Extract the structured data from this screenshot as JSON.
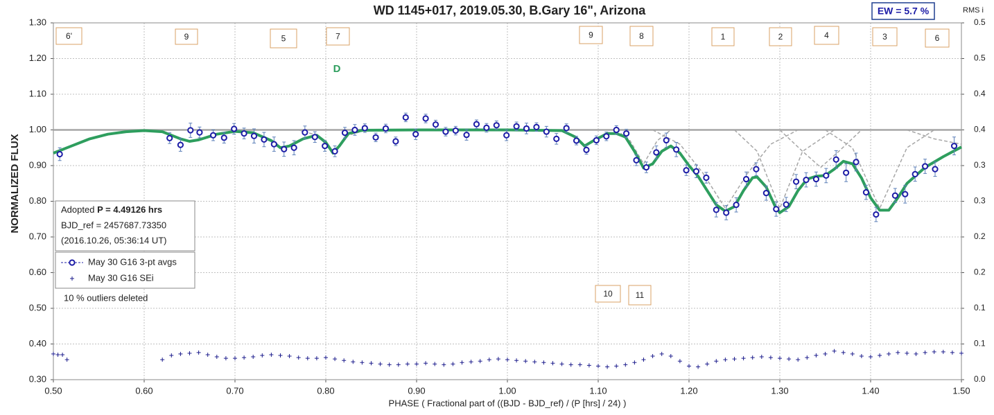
{
  "chart_data": {
    "type": "scatter",
    "title": "WD 1145+017, 2019.05.30, B.Gary 16\", Arizona",
    "x_label": "PHASE ( Fractional part of ((BJD - BJD_ref) / (P [hrs] / 24) )",
    "y_label": "NORMALIZED FLUX",
    "y2_label": "RMS i",
    "xlim": [
      0.5,
      1.5
    ],
    "xticks": [
      {
        "value": 0.5,
        "label": "0.50"
      },
      {
        "value": 0.6,
        "label": "0.60"
      },
      {
        "value": 0.7,
        "label": "0.70"
      },
      {
        "value": 0.8,
        "label": "0.80"
      },
      {
        "value": 0.9,
        "label": "0.90"
      },
      {
        "value": 1.0,
        "label": "1.00"
      },
      {
        "value": 1.1,
        "label": "1.10"
      },
      {
        "value": 1.2,
        "label": "1.20"
      },
      {
        "value": 1.3,
        "label": "1.30"
      },
      {
        "value": 1.4,
        "label": "1.40"
      },
      {
        "value": 1.5,
        "label": "1.50"
      }
    ],
    "ylim": [
      0.3,
      1.3
    ],
    "yticks": [
      {
        "value": 0.3,
        "label": "0.30"
      },
      {
        "value": 0.4,
        "label": "0.40"
      },
      {
        "value": 0.5,
        "label": "0.50"
      },
      {
        "value": 0.6,
        "label": "0.60"
      },
      {
        "value": 0.7,
        "label": "0.70"
      },
      {
        "value": 0.8,
        "label": "0.80"
      },
      {
        "value": 0.9,
        "label": "0.90"
      },
      {
        "value": 1.0,
        "label": "1.00"
      },
      {
        "value": 1.1,
        "label": "1.10"
      },
      {
        "value": 1.2,
        "label": "1.20"
      },
      {
        "value": 1.3,
        "label": "1.30"
      }
    ],
    "y2lim": [
      0,
      0.5
    ],
    "y2ticks": [
      {
        "value": 0,
        "label": "0.0"
      },
      {
        "value": 0.05,
        "label": "0.1"
      },
      0.1,
      {
        "value": 0.15,
        "label": "0.2"
      },
      0.2,
      {
        "value": 0.25,
        "label": "0.3"
      },
      0.3,
      {
        "value": 0.35,
        "label": "0.4"
      },
      0.4,
      {
        "value": 0.45,
        "label": "0.5"
      },
      0.5
    ],
    "grid": true,
    "reference_line": 1.0,
    "reference_color": "#a6a6a6",
    "series": [
      {
        "name": "May 30 G16 3-pt avgs",
        "color": "#1c1ca6",
        "marker": "circle",
        "x": [
          0.507,
          0.628,
          0.64,
          0.651,
          0.661,
          0.676,
          0.688,
          0.699,
          0.71,
          0.721,
          0.732,
          0.743,
          0.754,
          0.765,
          0.777,
          0.788,
          0.799,
          0.81,
          0.821,
          0.832,
          0.843,
          0.855,
          0.866,
          0.877,
          0.888,
          0.899,
          0.91,
          0.921,
          0.932,
          0.943,
          0.955,
          0.966,
          0.977,
          0.988,
          0.999,
          1.01,
          1.021,
          1.032,
          1.043,
          1.054,
          1.065,
          1.076,
          1.087,
          1.098,
          1.109,
          1.12,
          1.131,
          1.142,
          1.153,
          1.164,
          1.175,
          1.186,
          1.197,
          1.208,
          1.219,
          1.23,
          1.241,
          1.252,
          1.263,
          1.274,
          1.285,
          1.296,
          1.307,
          1.318,
          1.329,
          1.34,
          1.351,
          1.362,
          1.373,
          1.384,
          1.395,
          1.406,
          1.427,
          1.438,
          1.449,
          1.46,
          1.471,
          1.492
        ],
        "values": [
          0.932,
          0.977,
          0.958,
          0.999,
          0.993,
          0.985,
          0.978,
          1.003,
          0.99,
          0.983,
          0.973,
          0.96,
          0.946,
          0.95,
          0.993,
          0.98,
          0.955,
          0.94,
          0.992,
          1.0,
          1.005,
          0.979,
          1.004,
          0.968,
          1.035,
          0.988,
          1.032,
          1.015,
          0.995,
          0.998,
          0.986,
          1.016,
          1.006,
          1.013,
          0.985,
          1.01,
          1.004,
          1.008,
          0.995,
          0.975,
          1.005,
          0.97,
          0.944,
          0.971,
          0.982,
          1.0,
          0.99,
          0.915,
          0.895,
          0.937,
          0.971,
          0.945,
          0.887,
          0.884,
          0.866,
          0.776,
          0.768,
          0.79,
          0.862,
          0.89,
          0.823,
          0.778,
          0.791,
          0.855,
          0.86,
          0.862,
          0.872,
          0.917,
          0.88,
          0.91,
          0.825,
          0.763,
          0.816,
          0.82,
          0.876,
          0.898,
          0.89,
          0.955
        ],
        "errors": [
          0.018,
          0.015,
          0.018,
          0.02,
          0.015,
          0.015,
          0.015,
          0.015,
          0.015,
          0.02,
          0.02,
          0.02,
          0.02,
          0.02,
          0.018,
          0.015,
          0.015,
          0.015,
          0.015,
          0.015,
          0.012,
          0.012,
          0.012,
          0.012,
          0.012,
          0.015,
          0.012,
          0.012,
          0.012,
          0.012,
          0.015,
          0.012,
          0.012,
          0.012,
          0.015,
          0.012,
          0.015,
          0.012,
          0.015,
          0.015,
          0.012,
          0.012,
          0.012,
          0.012,
          0.012,
          0.012,
          0.012,
          0.015,
          0.015,
          0.018,
          0.02,
          0.02,
          0.015,
          0.018,
          0.015,
          0.02,
          0.02,
          0.02,
          0.02,
          0.018,
          0.02,
          0.02,
          0.02,
          0.02,
          0.02,
          0.02,
          0.02,
          0.025,
          0.025,
          0.025,
          0.02,
          0.02,
          0.02,
          0.025,
          0.02,
          0.02,
          0.02,
          0.025
        ]
      },
      {
        "name": "May 30 G16 SEi",
        "color": "#1c1c8c",
        "marker": "plus",
        "axis": "y2",
        "x": [
          0.5,
          0.505,
          0.51,
          0.515,
          0.62,
          0.63,
          0.64,
          0.65,
          0.66,
          0.67,
          0.68,
          0.69,
          0.7,
          0.71,
          0.72,
          0.73,
          0.74,
          0.75,
          0.76,
          0.77,
          0.78,
          0.79,
          0.8,
          0.81,
          0.82,
          0.83,
          0.84,
          0.85,
          0.86,
          0.87,
          0.88,
          0.89,
          0.9,
          0.91,
          0.92,
          0.93,
          0.94,
          0.95,
          0.96,
          0.97,
          0.98,
          0.99,
          1.0,
          1.01,
          1.02,
          1.03,
          1.04,
          1.05,
          1.06,
          1.07,
          1.08,
          1.09,
          1.1,
          1.11,
          1.12,
          1.13,
          1.14,
          1.15,
          1.16,
          1.17,
          1.18,
          1.19,
          1.2,
          1.21,
          1.22,
          1.23,
          1.24,
          1.25,
          1.26,
          1.27,
          1.28,
          1.29,
          1.3,
          1.31,
          1.32,
          1.33,
          1.34,
          1.35,
          1.36,
          1.37,
          1.38,
          1.39,
          1.4,
          1.41,
          1.42,
          1.43,
          1.44,
          1.45,
          1.46,
          1.47,
          1.48,
          1.49,
          1.5
        ],
        "values": [
          0.036,
          0.035,
          0.035,
          0.028,
          0.028,
          0.034,
          0.036,
          0.037,
          0.038,
          0.035,
          0.032,
          0.03,
          0.03,
          0.031,
          0.032,
          0.034,
          0.035,
          0.034,
          0.033,
          0.031,
          0.03,
          0.03,
          0.031,
          0.029,
          0.027,
          0.025,
          0.024,
          0.023,
          0.022,
          0.021,
          0.021,
          0.022,
          0.022,
          0.023,
          0.022,
          0.021,
          0.022,
          0.024,
          0.025,
          0.026,
          0.028,
          0.029,
          0.028,
          0.027,
          0.026,
          0.025,
          0.024,
          0.023,
          0.022,
          0.021,
          0.021,
          0.02,
          0.019,
          0.018,
          0.019,
          0.021,
          0.024,
          0.028,
          0.033,
          0.036,
          0.033,
          0.026,
          0.019,
          0.018,
          0.022,
          0.026,
          0.028,
          0.029,
          0.03,
          0.031,
          0.032,
          0.031,
          0.03,
          0.029,
          0.028,
          0.031,
          0.034,
          0.036,
          0.04,
          0.038,
          0.036,
          0.033,
          0.032,
          0.034,
          0.036,
          0.038,
          0.037,
          0.036,
          0.038,
          0.039,
          0.039,
          0.038,
          0.037
        ]
      },
      {
        "color": "#a6a6a6",
        "style": "dashed",
        "x": [
          0.77,
          0.79,
          0.808,
          0.825,
          0.845
        ],
        "values": [
          1.0,
          0.985,
          0.94,
          0.985,
          1.0
        ]
      },
      {
        "color": "#a6a6a6",
        "style": "dashed",
        "x": [
          1.12,
          1.135,
          1.15,
          1.165,
          1.18
        ],
        "values": [
          1.0,
          0.97,
          0.905,
          0.97,
          1.0
        ]
      },
      {
        "color": "#a6a6a6",
        "style": "dashed",
        "x": [
          1.16,
          1.19,
          1.215,
          1.24,
          1.265,
          1.29,
          1.32
        ],
        "values": [
          1.0,
          0.96,
          0.88,
          0.78,
          0.88,
          0.96,
          1.0
        ]
      },
      {
        "color": "#a6a6a6",
        "style": "dashed",
        "x": [
          1.25,
          1.275,
          1.3,
          1.325,
          1.36
        ],
        "values": [
          1.0,
          0.94,
          0.78,
          0.94,
          1.0
        ]
      },
      {
        "color": "#a6a6a6",
        "style": "dashed",
        "x": [
          1.3,
          1.325,
          1.345,
          1.365,
          1.39
        ],
        "values": [
          1.0,
          0.94,
          0.895,
          0.94,
          1.0
        ]
      },
      {
        "color": "#a6a6a6",
        "style": "dashed",
        "x": [
          1.35,
          1.38,
          1.41,
          1.44,
          1.47
        ],
        "values": [
          1.0,
          0.95,
          0.78,
          0.95,
          1.0
        ]
      },
      {
        "color": "#a6a6a6",
        "style": "dashed",
        "x": [
          1.44,
          1.47,
          1.5
        ],
        "values": [
          1.0,
          0.975,
          0.96
        ]
      },
      {
        "color": "#2e9e5e",
        "style": "solid",
        "x": [
          0.5,
          0.52,
          0.54,
          0.56,
          0.58,
          0.6,
          0.62,
          0.64,
          0.65,
          0.66,
          0.68,
          0.7,
          0.72,
          0.74,
          0.75,
          0.76,
          0.775,
          0.79,
          0.8,
          0.808,
          0.815,
          0.825,
          0.84,
          0.9,
          1.0,
          1.06,
          1.075,
          1.085,
          1.095,
          1.11,
          1.12,
          1.13,
          1.14,
          1.15,
          1.16,
          1.17,
          1.18,
          1.19,
          1.2,
          1.21,
          1.22,
          1.23,
          1.24,
          1.25,
          1.26,
          1.27,
          1.275,
          1.285,
          1.295,
          1.3,
          1.31,
          1.32,
          1.33,
          1.34,
          1.35,
          1.36,
          1.37,
          1.38,
          1.39,
          1.4,
          1.41,
          1.42,
          1.43,
          1.44,
          1.46,
          1.48,
          1.5
        ],
        "values": [
          0.935,
          0.955,
          0.975,
          0.988,
          0.995,
          0.998,
          0.995,
          0.975,
          0.968,
          0.972,
          0.988,
          0.996,
          0.992,
          0.97,
          0.95,
          0.955,
          0.975,
          0.985,
          0.965,
          0.935,
          0.955,
          0.99,
          0.999,
          1.0,
          1.0,
          0.998,
          0.98,
          0.955,
          0.97,
          0.99,
          0.99,
          0.98,
          0.94,
          0.893,
          0.905,
          0.94,
          0.955,
          0.935,
          0.9,
          0.87,
          0.83,
          0.79,
          0.772,
          0.785,
          0.83,
          0.866,
          0.868,
          0.84,
          0.785,
          0.768,
          0.785,
          0.83,
          0.862,
          0.87,
          0.872,
          0.89,
          0.912,
          0.905,
          0.865,
          0.81,
          0.775,
          0.775,
          0.81,
          0.85,
          0.895,
          0.925,
          0.952
        ]
      }
    ],
    "annotations": [
      "6'",
      "9",
      "5",
      "7",
      "9",
      "8",
      "1",
      "2",
      "4",
      "3",
      "6",
      "10",
      "11",
      "D"
    ],
    "info": {
      "prefix": "Adopted",
      "period": "P = 4.49126 hrs",
      "ref": "BJD_ref = 2457687.73350",
      "date": "(2016.10.26, 05:36:14 UT)"
    },
    "note": "10 % outliers deleted",
    "ew": "EW =  5.7 %"
  }
}
